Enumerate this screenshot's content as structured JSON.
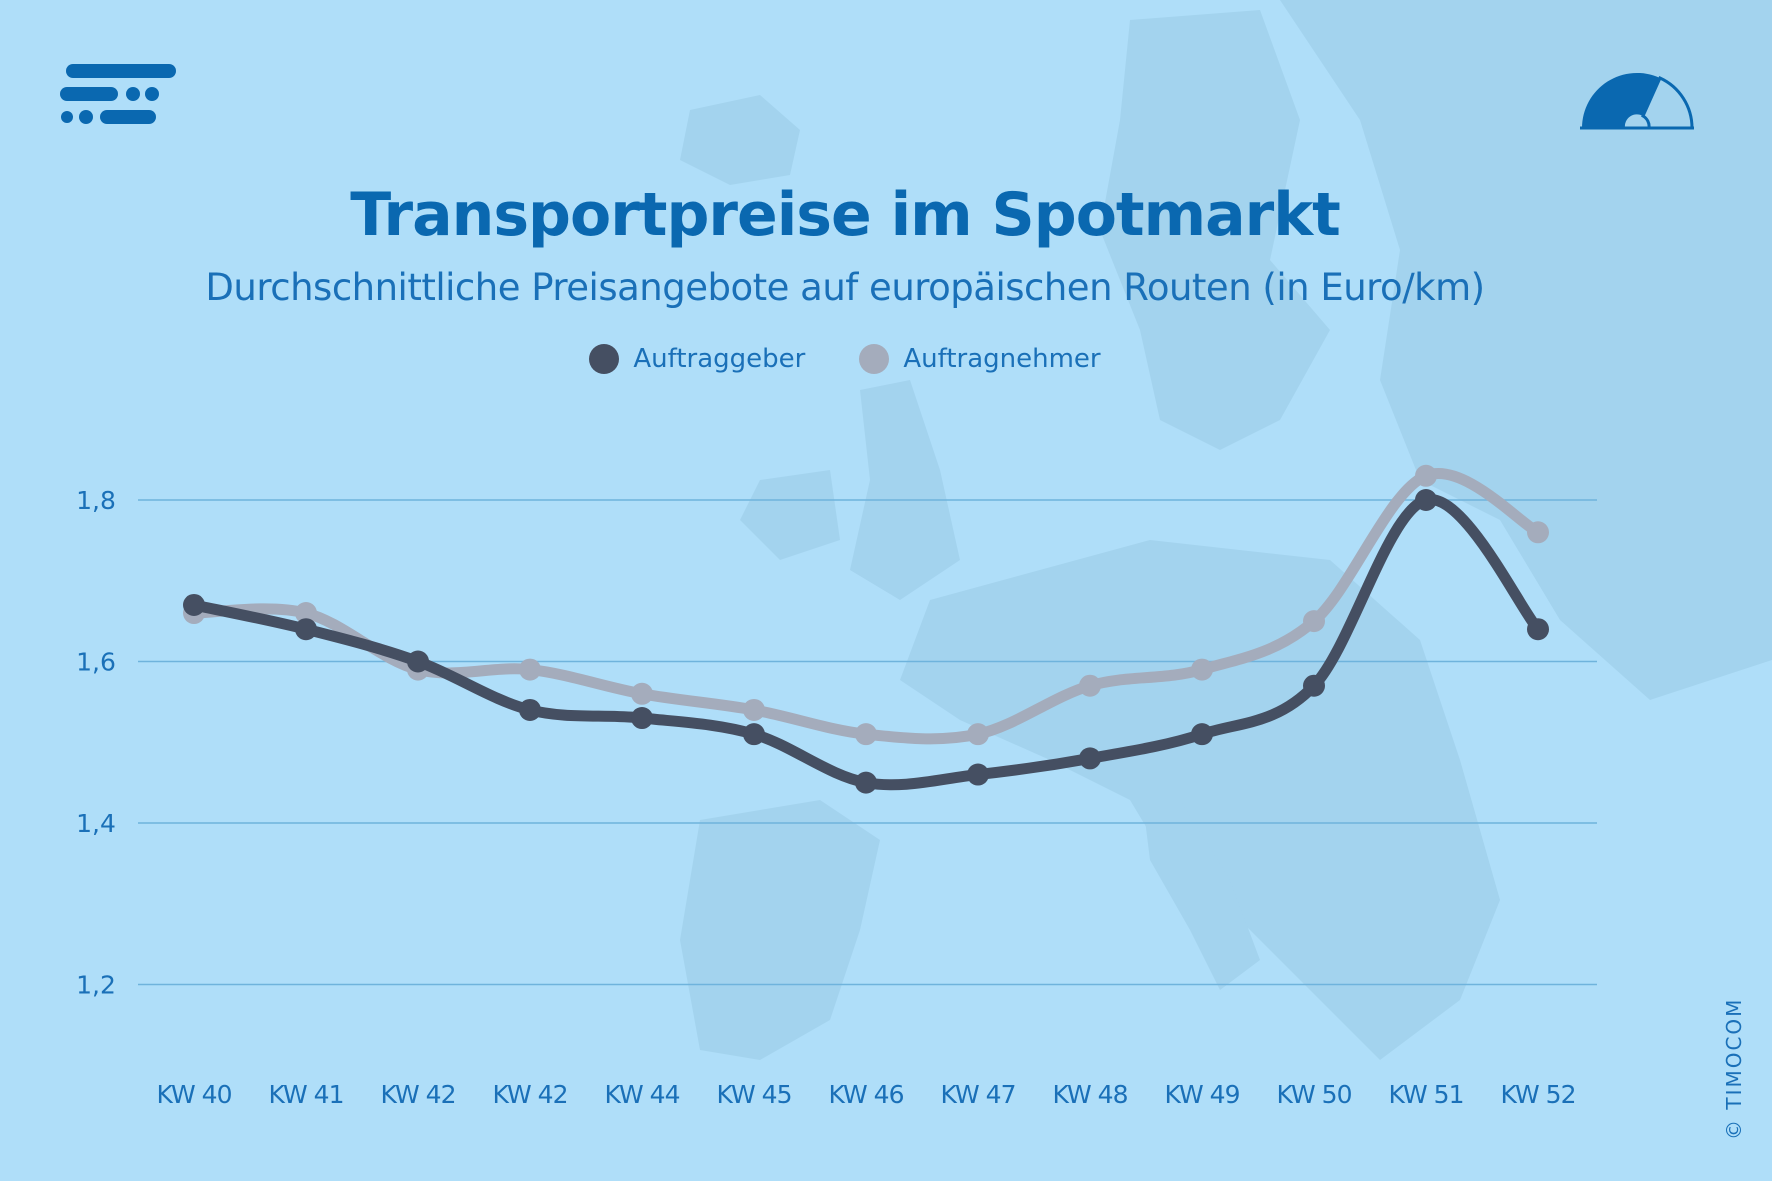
{
  "brand": {
    "copyright": "© TIMOCOM"
  },
  "colors": {
    "background": "#afdef9",
    "title": "#0a68b0",
    "grid": "#6fb3dc",
    "auftraggeber": "#454f62",
    "auftragnehmer": "#a4acbc"
  },
  "chart_data": {
    "type": "line",
    "title": "Transportpreise im Spotmarkt",
    "subtitle": "Durchschnittliche Preisangebote auf europäischen Routen (in Euro/km)",
    "xlabel": "",
    "ylabel": "",
    "categories": [
      "KW 40",
      "KW 41",
      "KW 42",
      "KW 42",
      "KW 44",
      "KW 45",
      "KW 46",
      "KW 47",
      "KW 48",
      "KW 49",
      "KW 50",
      "KW 51",
      "KW 52"
    ],
    "y_ticks": [
      "1,8",
      "1,6",
      "1,4",
      "1,2"
    ],
    "y_tick_values": [
      1.8,
      1.6,
      1.4,
      1.2
    ],
    "ylim": [
      1.1,
      1.9
    ],
    "grid": "horizontal",
    "legend_position": "top-center",
    "series": [
      {
        "name": "Auftraggeber",
        "color": "#454f62",
        "values": [
          1.67,
          1.64,
          1.6,
          1.54,
          1.53,
          1.51,
          1.45,
          1.46,
          1.48,
          1.51,
          1.57,
          1.8,
          1.64
        ]
      },
      {
        "name": "Auftragnehmer",
        "color": "#a4acbc",
        "values": [
          1.66,
          1.66,
          1.59,
          1.59,
          1.56,
          1.54,
          1.51,
          1.51,
          1.57,
          1.59,
          1.65,
          1.83,
          1.76
        ]
      }
    ]
  }
}
